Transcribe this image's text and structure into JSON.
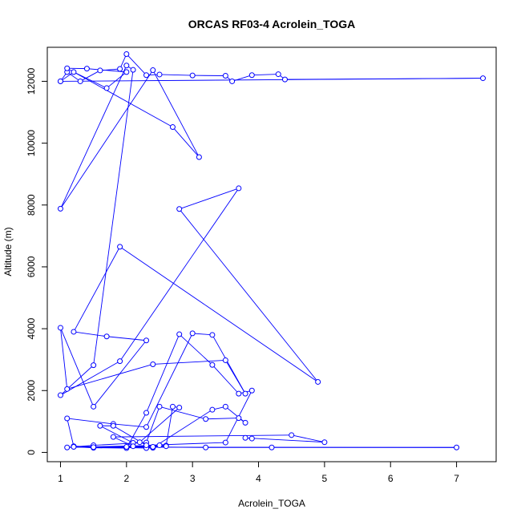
{
  "chart_data": {
    "type": "line",
    "title": "ORCAS RF03-4 Acrolein_TOGA",
    "xlabel": "Acrolein_TOGA",
    "ylabel": "Altitude (m)",
    "xlim": [
      0.8,
      7.6
    ],
    "ylim": [
      -300,
      13100
    ],
    "xticks": [
      "1",
      "2",
      "3",
      "4",
      "5",
      "6",
      "7"
    ],
    "yticks": [
      "0",
      "2000",
      "4000",
      "6000",
      "8000",
      "10000",
      "12000"
    ],
    "series_color": "#0000ff",
    "marker": "open-circle",
    "grid": false,
    "legend": "none",
    "series": [
      {
        "x": [
          1.0,
          1.1,
          1.3,
          1.6,
          1.9,
          2.0,
          2.3,
          2.5,
          3.0,
          3.5,
          3.6,
          3.9,
          4.3,
          4.4,
          7.4,
          1.0,
          1.2,
          1.7,
          2.0,
          1.4,
          1.1,
          2.7,
          3.1,
          2.4,
          1.0,
          2.0,
          2.1,
          1.5,
          1.0,
          1.9,
          3.7,
          2.8,
          4.9,
          1.9,
          1.2,
          1.7,
          2.3,
          1.5,
          1.0,
          1.1,
          2.4,
          3.5,
          3.8,
          3.3,
          3.0,
          2.3,
          1.8,
          1.1,
          1.2,
          2.3,
          2.4,
          3.3,
          3.5,
          3.8,
          3.7,
          3.2,
          2.5,
          2.3,
          1.5,
          1.1,
          2.5,
          2.6,
          2.7,
          2.8,
          2.2,
          2.1,
          1.6,
          1.8,
          2.3,
          3.5,
          3.9,
          3.7,
          3.3,
          2.8,
          2.3,
          2.0,
          1.5,
          1.2,
          2.0,
          3.2,
          4.2,
          7.0,
          1.5,
          2.6,
          2.4,
          2.1,
          1.8,
          4.5,
          5.0,
          3.8,
          3.9
        ],
        "y": [
          12000,
          12300,
          12000,
          12350,
          12400,
          12880,
          12200,
          12220,
          12190,
          12180,
          12000,
          12200,
          12230,
          12060,
          12100,
          12000,
          12300,
          11780,
          12300,
          12410,
          12420,
          10520,
          9550,
          12360,
          7880,
          12510,
          12370,
          2820,
          1850,
          2950,
          8540,
          7870,
          2280,
          6650,
          3900,
          3750,
          3620,
          1480,
          4030,
          2050,
          2850,
          2980,
          1900,
          3800,
          3850,
          820,
          920,
          1100,
          200,
          140,
          150,
          1380,
          1480,
          960,
          1110,
          1080,
          1480,
          320,
          230,
          160,
          230,
          220,
          1480,
          1450,
          330,
          310,
          860,
          860,
          230,
          320,
          2000,
          1900,
          2830,
          3820,
          1280,
          140,
          150,
          180,
          180,
          160,
          160,
          160,
          170,
          200,
          180,
          200,
          500,
          560,
          330,
          470,
          450
        ]
      }
    ]
  }
}
